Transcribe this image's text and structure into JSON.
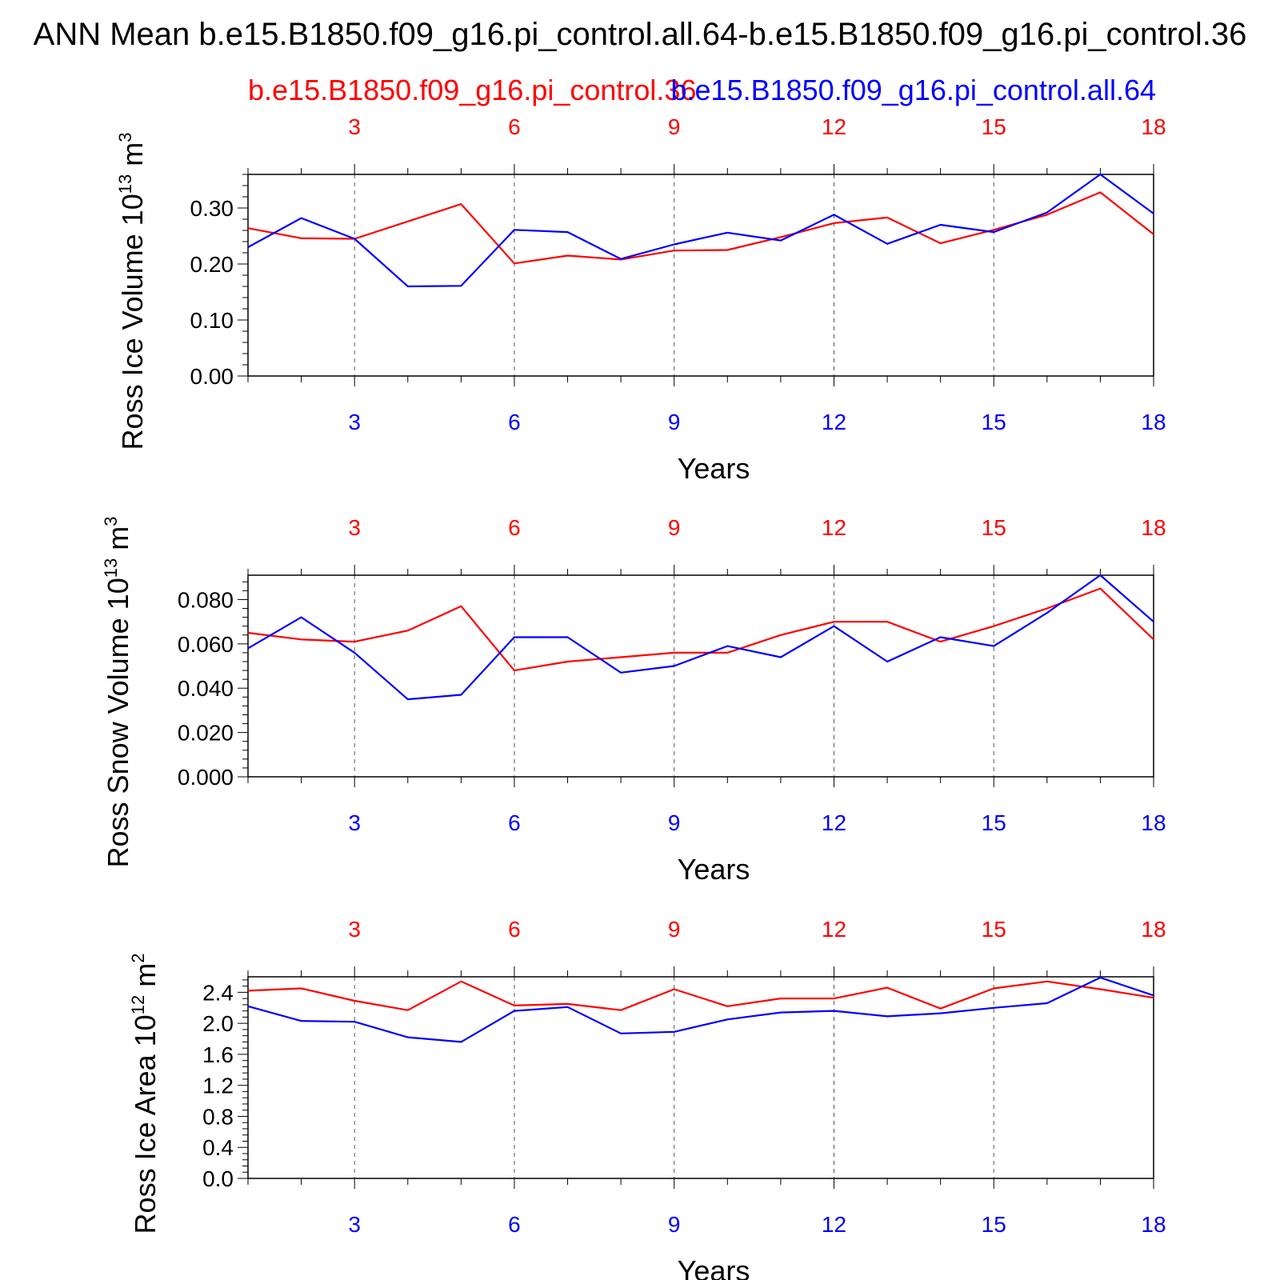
{
  "title": "ANN Mean b.e15.B1850.f09_g16.pi_control.all.64-b.e15.B1850.f09_g16.pi_control.36",
  "legend": {
    "red_label": "b.e15.B1850.f09_g16.pi_control.36",
    "blue_label": "b.e15.B1850.f09_g16.pi_control.all.64"
  },
  "colors": {
    "red": "#ff0000",
    "blue": "#0000ff"
  },
  "chart_data": [
    {
      "type": "line",
      "ylabel": "Ross Ice Volume 10^13 m^3",
      "ylabel_base": "Ross Ice Volume 10",
      "ylabel_exp": "13",
      "ylabel_unit": "m",
      "ylabel_unit_exp": "3",
      "xlabel": "Years",
      "x": [
        1,
        2,
        3,
        4,
        5,
        6,
        7,
        8,
        9,
        10,
        11,
        12,
        13,
        14,
        15,
        16,
        17,
        18
      ],
      "xlim": [
        1,
        18
      ],
      "ylim": [
        0,
        0.36
      ],
      "xticks": [
        "3",
        "6",
        "9",
        "12",
        "15",
        "18"
      ],
      "yticks": [
        "0.00",
        "0.10",
        "0.20",
        "0.30"
      ],
      "ytick_values": [
        0,
        0.1,
        0.2,
        0.3
      ],
      "series": [
        {
          "name": "b.e15.B1850.f09_g16.pi_control.36",
          "color": "red",
          "values": [
            0.264,
            0.246,
            0.245,
            0.276,
            0.307,
            0.201,
            0.215,
            0.208,
            0.224,
            0.225,
            0.248,
            0.273,
            0.283,
            0.237,
            0.261,
            0.288,
            0.328,
            0.253
          ]
        },
        {
          "name": "b.e15.B1850.f09_g16.pi_control.all.64",
          "color": "blue",
          "values": [
            0.23,
            0.282,
            0.245,
            0.16,
            0.161,
            0.261,
            0.257,
            0.209,
            0.235,
            0.256,
            0.242,
            0.288,
            0.236,
            0.27,
            0.257,
            0.292,
            0.36,
            0.29
          ]
        }
      ]
    },
    {
      "type": "line",
      "ylabel": "Ross Snow Volume 10^13 m^3",
      "ylabel_base": "Ross Snow Volume 10",
      "ylabel_exp": "13",
      "ylabel_unit": "m",
      "ylabel_unit_exp": "3",
      "xlabel": "Years",
      "x": [
        1,
        2,
        3,
        4,
        5,
        6,
        7,
        8,
        9,
        10,
        11,
        12,
        13,
        14,
        15,
        16,
        17,
        18
      ],
      "xlim": [
        1,
        18
      ],
      "ylim": [
        0,
        0.091
      ],
      "xticks": [
        "3",
        "6",
        "9",
        "12",
        "15",
        "18"
      ],
      "yticks": [
        "0.000",
        "0.020",
        "0.040",
        "0.060",
        "0.080"
      ],
      "ytick_values": [
        0,
        0.02,
        0.04,
        0.06,
        0.08
      ],
      "series": [
        {
          "name": "b.e15.B1850.f09_g16.pi_control.36",
          "color": "red",
          "values": [
            0.065,
            0.062,
            0.061,
            0.066,
            0.077,
            0.048,
            0.052,
            0.054,
            0.056,
            0.056,
            0.064,
            0.07,
            0.07,
            0.061,
            0.068,
            0.076,
            0.085,
            0.062
          ]
        },
        {
          "name": "b.e15.B1850.f09_g16.pi_control.all.64",
          "color": "blue",
          "values": [
            0.058,
            0.072,
            0.056,
            0.035,
            0.037,
            0.063,
            0.063,
            0.047,
            0.05,
            0.059,
            0.054,
            0.068,
            0.052,
            0.063,
            0.059,
            0.074,
            0.091,
            0.07
          ]
        }
      ]
    },
    {
      "type": "line",
      "ylabel": "Ross Ice Area 10^12 m^2",
      "ylabel_base": "Ross Ice Area 10",
      "ylabel_exp": "12",
      "ylabel_unit": "m",
      "ylabel_unit_exp": "2",
      "xlabel": "Years",
      "x": [
        1,
        2,
        3,
        4,
        5,
        6,
        7,
        8,
        9,
        10,
        11,
        12,
        13,
        14,
        15,
        16,
        17,
        18
      ],
      "xlim": [
        1,
        18
      ],
      "ylim": [
        0,
        2.6
      ],
      "xticks": [
        "3",
        "6",
        "9",
        "12",
        "15",
        "18"
      ],
      "yticks": [
        "0.0",
        "0.4",
        "0.8",
        "1.2",
        "1.6",
        "2.0",
        "2.4"
      ],
      "ytick_values": [
        0,
        0.4,
        0.8,
        1.2,
        1.6,
        2.0,
        2.4
      ],
      "series": [
        {
          "name": "b.e15.B1850.f09_g16.pi_control.36",
          "color": "red",
          "values": [
            2.42,
            2.45,
            2.29,
            2.17,
            2.54,
            2.23,
            2.25,
            2.17,
            2.44,
            2.22,
            2.32,
            2.32,
            2.46,
            2.19,
            2.45,
            2.54,
            2.44,
            2.33
          ]
        },
        {
          "name": "b.e15.B1850.f09_g16.pi_control.all.64",
          "color": "blue",
          "values": [
            2.22,
            2.03,
            2.02,
            1.82,
            1.76,
            2.16,
            2.21,
            1.87,
            1.89,
            2.05,
            2.14,
            2.16,
            2.09,
            2.13,
            2.2,
            2.26,
            2.59,
            2.36
          ]
        }
      ]
    }
  ]
}
